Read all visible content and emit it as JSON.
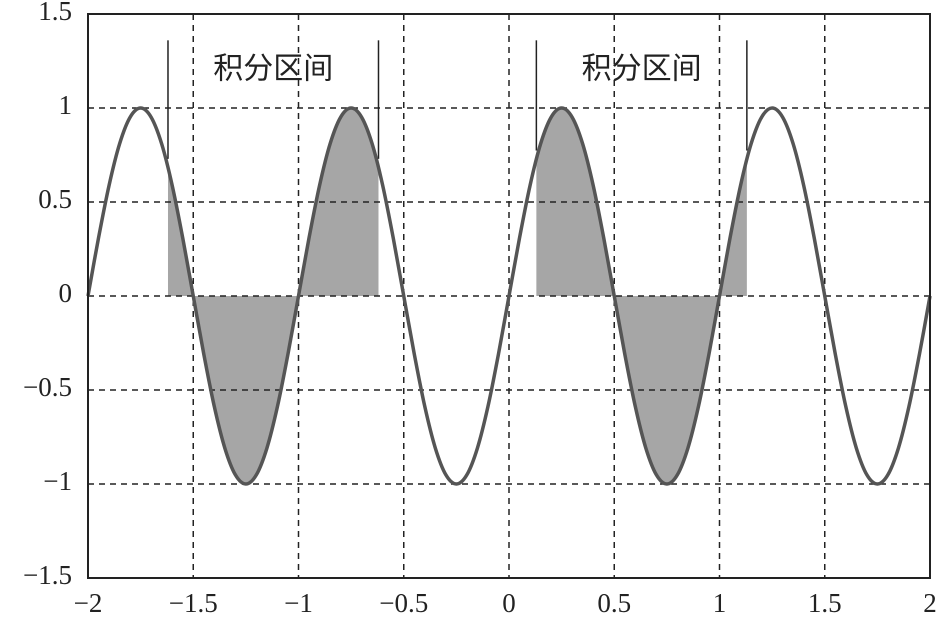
{
  "chart_data": {
    "type": "line",
    "xlim": [
      -2,
      2
    ],
    "ylim": [
      -1.5,
      1.5
    ],
    "xticks": [
      {
        "value": -2,
        "label": "−2"
      },
      {
        "value": -1.5,
        "label": "−1.5"
      },
      {
        "value": -1,
        "label": "−1"
      },
      {
        "value": -0.5,
        "label": "−0.5"
      },
      0,
      0.5,
      1,
      1.5,
      2
    ],
    "yticks": [
      {
        "value": -1.5,
        "label": "−1.5"
      },
      {
        "value": -1,
        "label": "−1"
      },
      {
        "value": -0.5,
        "label": "−0.5"
      },
      0,
      0.5,
      1,
      1.5
    ],
    "grid": true,
    "x": [
      -2,
      -1.95,
      -1.9,
      -1.85,
      -1.8,
      -1.75,
      -1.7,
      -1.65,
      -1.6,
      -1.55,
      -1.5,
      -1.45,
      -1.4,
      -1.35,
      -1.3,
      -1.25,
      -1.2,
      -1.15,
      -1.1,
      -1.05,
      -1,
      -0.95,
      -0.9,
      -0.85,
      -0.8,
      -0.75,
      -0.7,
      -0.65,
      -0.6,
      -0.55,
      -0.5,
      -0.45,
      -0.4,
      -0.35,
      -0.3,
      -0.25,
      -0.2,
      -0.15,
      -0.1,
      -0.05,
      0,
      0.05,
      0.1,
      0.15,
      0.2,
      0.25,
      0.3,
      0.35,
      0.4,
      0.45,
      0.5,
      0.55,
      0.6,
      0.65,
      0.7,
      0.75,
      0.8,
      0.85,
      0.9,
      0.95,
      1,
      1.05,
      1.1,
      1.15,
      1.2,
      1.25,
      1.3,
      1.35,
      1.4,
      1.45,
      1.5,
      1.55,
      1.6,
      1.65,
      1.7,
      1.75,
      1.8,
      1.85,
      1.9,
      1.95,
      2
    ],
    "series": [
      {
        "color": "#555555",
        "values": [
          0,
          0.309,
          0.588,
          0.809,
          0.951,
          1,
          0.951,
          0.809,
          0.588,
          0.309,
          0,
          -0.309,
          -0.588,
          -0.809,
          -0.951,
          -1,
          -0.951,
          -0.809,
          -0.588,
          -0.309,
          0,
          0.309,
          0.588,
          0.809,
          0.951,
          1,
          0.951,
          0.809,
          0.588,
          0.309,
          0,
          -0.309,
          -0.588,
          -0.809,
          -0.951,
          -1,
          -0.951,
          -0.809,
          -0.588,
          -0.309,
          0,
          0.309,
          0.588,
          0.809,
          0.951,
          1,
          0.951,
          0.809,
          0.588,
          0.309,
          0,
          -0.309,
          -0.588,
          -0.809,
          -0.951,
          -1,
          -0.951,
          -0.809,
          -0.588,
          -0.309,
          0,
          0.309,
          0.588,
          0.809,
          0.951,
          1,
          0.951,
          0.809,
          0.588,
          0.309,
          0,
          -0.309,
          -0.588,
          -0.809,
          -0.951,
          -1,
          -0.951,
          -0.809,
          -0.588,
          -0.309,
          0
        ]
      }
    ],
    "intervals": [
      {
        "label": "积分区间",
        "x0": -1.62,
        "x1": -0.62
      },
      {
        "label": "积分区间",
        "x0": 0.13,
        "x1": 1.13
      }
    ],
    "fill_color": "#a6a6a6"
  }
}
